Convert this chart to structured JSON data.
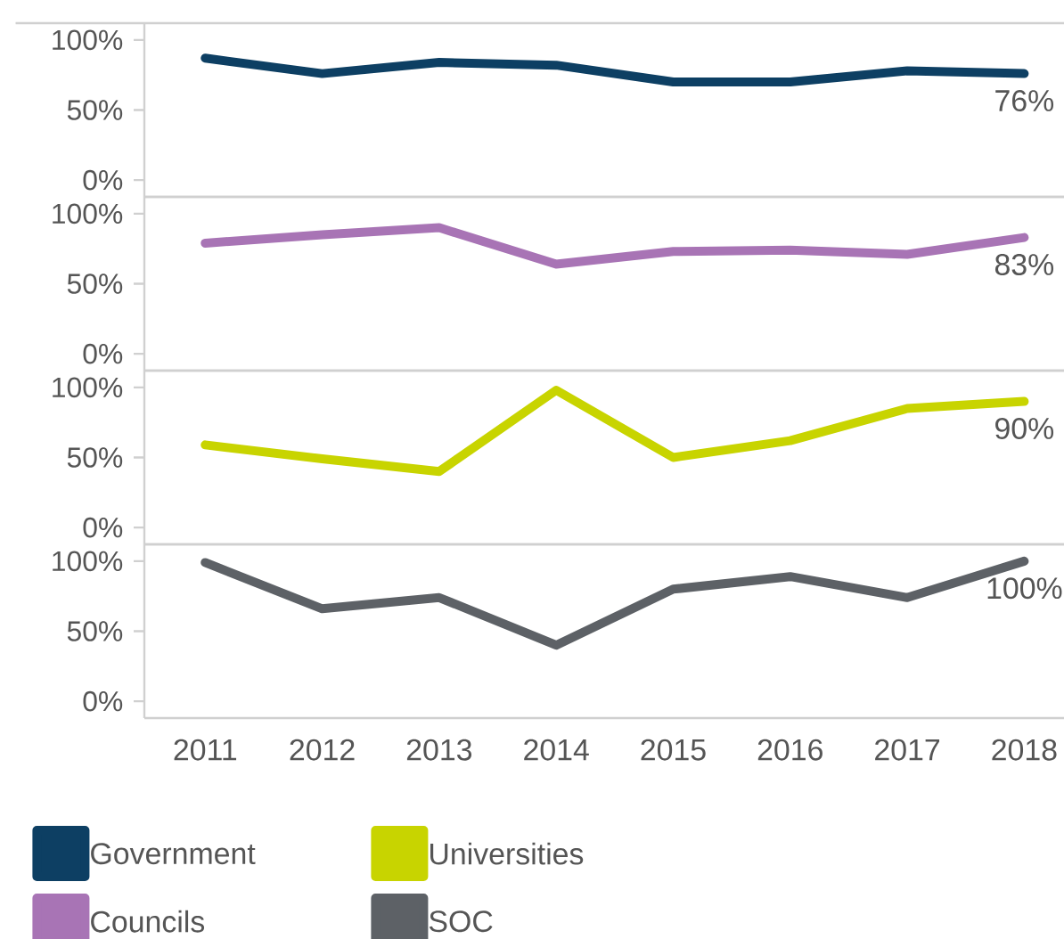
{
  "chart_data": [
    {
      "type": "line",
      "categories": [
        "2011",
        "2012",
        "2013",
        "2014",
        "2015",
        "2016",
        "2017",
        "2018"
      ],
      "ylim": [
        -12,
        112
      ],
      "yticks": [
        {
          "value": 0,
          "label": "0%"
        },
        {
          "value": 50,
          "label": "50%"
        },
        {
          "value": 100,
          "label": "100%"
        }
      ],
      "tick_labels": "y",
      "legend": "bottom",
      "series": [
        {
          "name": "Government",
          "color": "#0d3f63",
          "values": [
            87,
            76,
            84,
            82,
            70,
            70,
            78,
            76
          ],
          "value_labels": [
            null,
            null,
            null,
            null,
            null,
            null,
            null,
            "76%"
          ]
        }
      ]
    },
    {
      "type": "line",
      "categories": [
        "2011",
        "2012",
        "2013",
        "2014",
        "2015",
        "2016",
        "2017",
        "2018"
      ],
      "ylim": [
        -12,
        112
      ],
      "yticks": [
        {
          "value": 0,
          "label": "0%"
        },
        {
          "value": 50,
          "label": "50%"
        },
        {
          "value": 100,
          "label": "100%"
        }
      ],
      "tick_labels": "y",
      "legend": "bottom",
      "series": [
        {
          "name": "Councils",
          "color": "#a874b5",
          "values": [
            79,
            85,
            90,
            64,
            73,
            74,
            71,
            83
          ],
          "value_labels": [
            null,
            null,
            null,
            null,
            null,
            null,
            null,
            "83%"
          ]
        }
      ]
    },
    {
      "type": "line",
      "categories": [
        "2011",
        "2012",
        "2013",
        "2014",
        "2015",
        "2016",
        "2017",
        "2018"
      ],
      "ylim": [
        -12,
        112
      ],
      "yticks": [
        {
          "value": 0,
          "label": "0%"
        },
        {
          "value": 50,
          "label": "50%"
        },
        {
          "value": 100,
          "label": "100%"
        }
      ],
      "tick_labels": "y",
      "legend": "bottom",
      "series": [
        {
          "name": "Universities",
          "color": "#c8d400",
          "values": [
            59,
            49,
            40,
            98,
            50,
            62,
            85,
            90
          ],
          "value_labels": [
            null,
            null,
            null,
            null,
            null,
            null,
            null,
            "90%"
          ]
        }
      ]
    },
    {
      "type": "line",
      "categories": [
        "2011",
        "2012",
        "2013",
        "2014",
        "2015",
        "2016",
        "2017",
        "2018"
      ],
      "ylim": [
        -12,
        112
      ],
      "yticks": [
        {
          "value": 0,
          "label": "0%"
        },
        {
          "value": 50,
          "label": "50%"
        },
        {
          "value": 100,
          "label": "100%"
        }
      ],
      "legend": "bottom",
      "series": [
        {
          "name": "SOC",
          "color": "#5d6166",
          "values": [
            99,
            66,
            74,
            40,
            80,
            89,
            74,
            100
          ],
          "value_labels": [
            null,
            null,
            null,
            null,
            null,
            null,
            null,
            "100%"
          ]
        }
      ]
    }
  ]
}
